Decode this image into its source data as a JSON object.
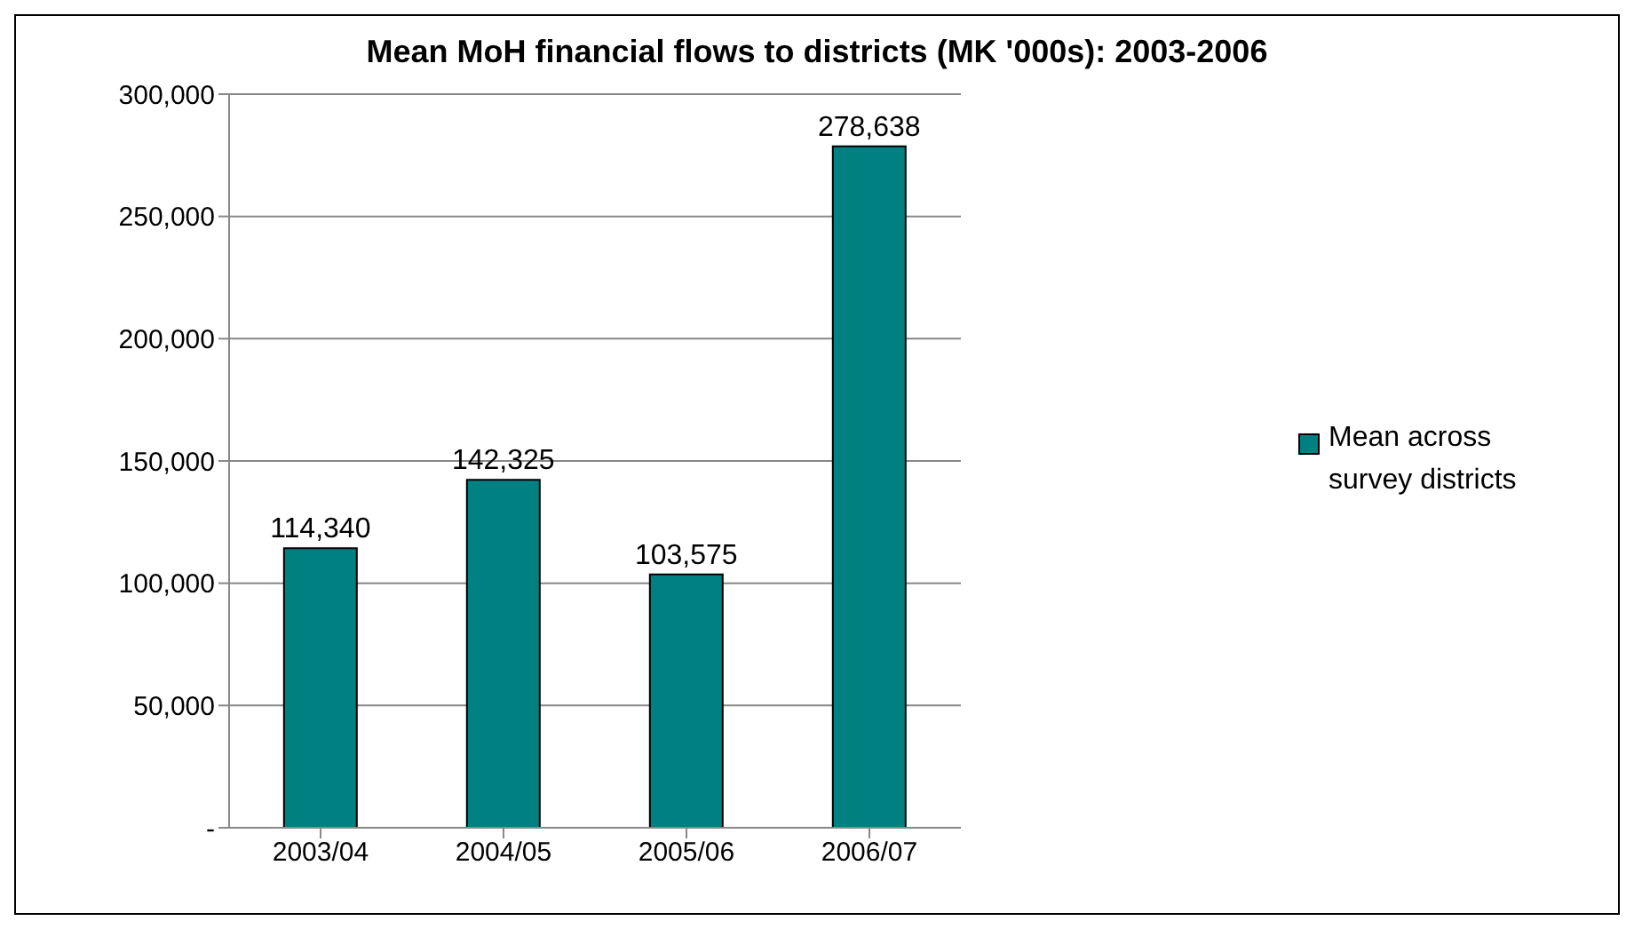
{
  "chart_data": {
    "type": "bar",
    "title": "Mean MoH financial flows to districts (MK '000s):  2003-2006",
    "categories": [
      "2003/04",
      "2004/05",
      "2005/06",
      "2006/07"
    ],
    "series": [
      {
        "name": "Mean across survey districts",
        "color": "#008080",
        "values": [
          114340,
          142325,
          103575,
          278638
        ],
        "value_labels": [
          "114,340",
          "142,325",
          "103,575",
          "278,638"
        ]
      }
    ],
    "ylim": [
      0,
      300000
    ],
    "yticks": [
      {
        "value": 0,
        "label": "-"
      },
      {
        "value": 50000,
        "label": "50,000"
      },
      {
        "value": 100000,
        "label": "100,000"
      },
      {
        "value": 150000,
        "label": "150,000"
      },
      {
        "value": 200000,
        "label": "200,000"
      },
      {
        "value": 250000,
        "label": "250,000"
      },
      {
        "value": 300000,
        "label": "300,000"
      }
    ],
    "grid": "y",
    "legend": "right"
  }
}
